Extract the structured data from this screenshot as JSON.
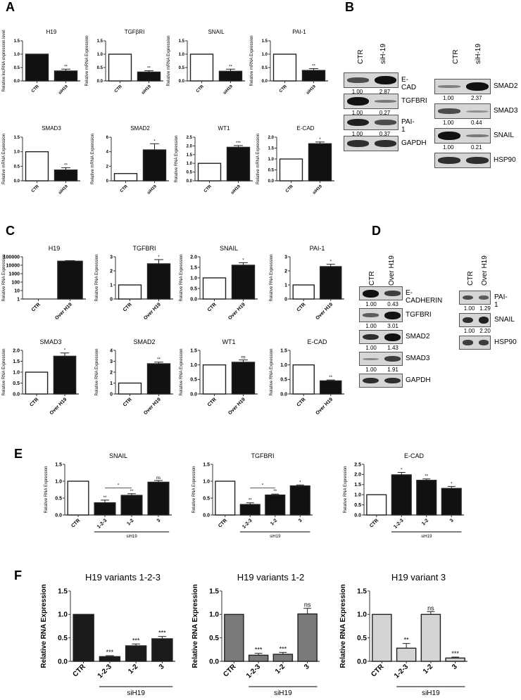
{
  "panels": {
    "A": "A",
    "B": "B",
    "C": "C",
    "D": "D",
    "E": "E",
    "F": "F"
  },
  "chart_data": [
    {
      "panel": "A",
      "type": "bar",
      "title": "H19",
      "ylabel": "Relative lncRNA expression level",
      "categories": [
        "CTR",
        "siH19"
      ],
      "values": [
        1.0,
        0.37
      ],
      "errors": [
        0,
        0.07
      ],
      "fills": [
        "#111111",
        "#111111"
      ],
      "sig": [
        "",
        "**"
      ],
      "ylim": [
        0,
        1.5
      ],
      "yticks": [
        "0.0",
        "0.5",
        "1.0",
        "1.5"
      ]
    },
    {
      "panel": "A",
      "type": "bar",
      "title": "TGFβRI",
      "ylabel": "Relative mRNA Expression",
      "categories": [
        "CTR",
        "siH19"
      ],
      "values": [
        1.0,
        0.33
      ],
      "errors": [
        0,
        0.05
      ],
      "fills": [
        "#ffffff",
        "#111111"
      ],
      "sig": [
        "",
        "**"
      ],
      "ylim": [
        0,
        1.5
      ],
      "yticks": [
        "0.0",
        "0.5",
        "1.0",
        "1.5"
      ]
    },
    {
      "panel": "A",
      "type": "bar",
      "title": "SNAIL",
      "ylabel": "Relative mRNA Expression",
      "categories": [
        "CTR",
        "siH19"
      ],
      "values": [
        1.0,
        0.36
      ],
      "errors": [
        0,
        0.08
      ],
      "fills": [
        "#ffffff",
        "#111111"
      ],
      "sig": [
        "",
        "**"
      ],
      "ylim": [
        0,
        1.5
      ],
      "yticks": [
        "0.0",
        "0.5",
        "1.0",
        "1.5"
      ]
    },
    {
      "panel": "A",
      "type": "bar",
      "title": "PAI-1",
      "ylabel": "Relative mRNA Expression",
      "categories": [
        "CTR",
        "siH19"
      ],
      "values": [
        1.0,
        0.39
      ],
      "errors": [
        0,
        0.07
      ],
      "fills": [
        "#ffffff",
        "#111111"
      ],
      "sig": [
        "",
        "**"
      ],
      "ylim": [
        0,
        1.5
      ],
      "yticks": [
        "0.0",
        "0.5",
        "1.0",
        "1.5"
      ]
    },
    {
      "panel": "A",
      "type": "bar",
      "title": "SMAD3",
      "ylabel": "Relative mRNA Expression",
      "categories": [
        "CTR",
        "siH19"
      ],
      "values": [
        1.0,
        0.37
      ],
      "errors": [
        0,
        0.08
      ],
      "fills": [
        "#ffffff",
        "#111111"
      ],
      "sig": [
        "",
        "**"
      ],
      "ylim": [
        0,
        1.5
      ],
      "yticks": [
        "0.0",
        "0.5",
        "1.0",
        "1.5"
      ]
    },
    {
      "panel": "A",
      "type": "bar",
      "title": "SMAD2",
      "ylabel": "Relative mRNA Expression",
      "categories": [
        "CTR",
        "siH19"
      ],
      "values": [
        1.0,
        4.25
      ],
      "errors": [
        0,
        0.85
      ],
      "fills": [
        "#ffffff",
        "#111111"
      ],
      "sig": [
        "",
        "*"
      ],
      "ylim": [
        0,
        6
      ],
      "yticks": [
        "0",
        "2",
        "4",
        "6"
      ]
    },
    {
      "panel": "A",
      "type": "bar",
      "title": "WT1",
      "ylabel": "Relative RNA Expression",
      "categories": [
        "CTR",
        "siH19"
      ],
      "values": [
        1.0,
        1.92
      ],
      "errors": [
        0,
        0.1
      ],
      "fills": [
        "#ffffff",
        "#111111"
      ],
      "sig": [
        "",
        "***"
      ],
      "ylim": [
        0,
        2.5
      ],
      "yticks": [
        "0.0",
        "0.5",
        "1.0",
        "1.5",
        "2.0",
        "2.5"
      ]
    },
    {
      "panel": "A",
      "type": "bar",
      "title": "E-CAD",
      "ylabel": "Relative mRNA Expression",
      "categories": [
        "CTR",
        "siH19"
      ],
      "values": [
        1.0,
        1.7
      ],
      "errors": [
        0,
        0.08
      ],
      "fills": [
        "#ffffff",
        "#111111"
      ],
      "sig": [
        "",
        "*"
      ],
      "ylim": [
        0,
        2.0
      ],
      "yticks": [
        "0.0",
        "0.5",
        "1.0",
        "1.5",
        "2.0"
      ]
    },
    {
      "panel": "C",
      "type": "bar",
      "title": "H19",
      "ylabel": "Relative RNA Expression",
      "categories": [
        "CTR",
        "Over H19"
      ],
      "values": [
        1,
        30000
      ],
      "errors": [
        0,
        5000
      ],
      "fills": [
        "#ffffff",
        "#111111"
      ],
      "sig": [
        "",
        ""
      ],
      "yscale": "log",
      "ylim": [
        1,
        100000
      ],
      "yticks": [
        "1",
        "10",
        "100",
        "1000",
        "10000",
        "100000"
      ]
    },
    {
      "panel": "C",
      "type": "bar",
      "title": "TGFBRI",
      "ylabel": "Relative RNA Expression",
      "categories": [
        "CTR",
        "Over H19"
      ],
      "values": [
        1.0,
        2.5
      ],
      "errors": [
        0,
        0.3
      ],
      "fills": [
        "#ffffff",
        "#111111"
      ],
      "sig": [
        "",
        "*"
      ],
      "ylim": [
        0,
        3
      ],
      "yticks": [
        "0",
        "1",
        "2",
        "3"
      ]
    },
    {
      "panel": "C",
      "type": "bar",
      "title": "SNAIL",
      "ylabel": "Relative RNA Expression",
      "categories": [
        "CTR",
        "Over H19"
      ],
      "values": [
        1.0,
        1.6
      ],
      "errors": [
        0,
        0.12
      ],
      "fills": [
        "#ffffff",
        "#111111"
      ],
      "sig": [
        "",
        "*"
      ],
      "ylim": [
        0,
        2.0
      ],
      "yticks": [
        "0.0",
        "0.5",
        "1.0",
        "1.5",
        "2.0"
      ]
    },
    {
      "panel": "C",
      "type": "bar",
      "title": "PAI-1",
      "ylabel": "Relative RNA Expression",
      "categories": [
        "CTR",
        "Over H19"
      ],
      "values": [
        1.0,
        2.3
      ],
      "errors": [
        0,
        0.17
      ],
      "fills": [
        "#ffffff",
        "#111111"
      ],
      "sig": [
        "",
        "*"
      ],
      "ylim": [
        0,
        3
      ],
      "yticks": [
        "0",
        "1",
        "2",
        "3"
      ]
    },
    {
      "panel": "C",
      "type": "bar",
      "title": "SMAD3",
      "ylabel": "Relative RNA Expression",
      "categories": [
        "CTR",
        "Over H19"
      ],
      "values": [
        1.0,
        1.73
      ],
      "errors": [
        0,
        0.15
      ],
      "fills": [
        "#ffffff",
        "#111111"
      ],
      "sig": [
        "",
        "*"
      ],
      "ylim": [
        0,
        2.0
      ],
      "yticks": [
        "0.0",
        "0.5",
        "1.0",
        "1.5",
        "2.0"
      ]
    },
    {
      "panel": "C",
      "type": "bar",
      "title": "SMAD2",
      "ylabel": "Relative RNA Expression",
      "categories": [
        "CTR",
        "Over H19"
      ],
      "values": [
        1.0,
        2.77
      ],
      "errors": [
        0,
        0.15
      ],
      "fills": [
        "#ffffff",
        "#111111"
      ],
      "sig": [
        "",
        "**"
      ],
      "ylim": [
        0,
        4
      ],
      "yticks": [
        "0",
        "1",
        "2",
        "3",
        "4"
      ]
    },
    {
      "panel": "C",
      "type": "bar",
      "title": "WT1",
      "ylabel": "Relative RNA Expression",
      "categories": [
        "CTR",
        "Over H19"
      ],
      "values": [
        1.0,
        1.09
      ],
      "errors": [
        0,
        0.08
      ],
      "fills": [
        "#ffffff",
        "#111111"
      ],
      "sig": [
        "",
        "ns"
      ],
      "ylim": [
        0,
        1.5
      ],
      "yticks": [
        "0.0",
        "0.5",
        "1.0",
        "1.5"
      ]
    },
    {
      "panel": "C",
      "type": "bar",
      "title": "E-CAD",
      "ylabel": "Relative RNA Expression",
      "categories": [
        "CTR",
        "Over H19"
      ],
      "values": [
        1.0,
        0.45
      ],
      "errors": [
        0,
        0.03
      ],
      "fills": [
        "#ffffff",
        "#111111"
      ],
      "sig": [
        "",
        "**"
      ],
      "ylim": [
        0,
        1.5
      ],
      "yticks": [
        "0.0",
        "0.5",
        "1.0",
        "1.5"
      ]
    },
    {
      "panel": "E",
      "type": "bar",
      "title": "SNAIL",
      "ylabel": "Relative RNA Expression",
      "categories": [
        "CTR",
        "1-2-3",
        "1-2",
        "3"
      ],
      "values": [
        1.0,
        0.36,
        0.58,
        0.97
      ],
      "errors": [
        0,
        0.08,
        0.05,
        0.05
      ],
      "fills": [
        "#ffffff",
        "#111111",
        "#111111",
        "#111111"
      ],
      "sig": [
        "",
        "**",
        "**",
        "ns"
      ],
      "bracket": {
        "from": 1,
        "to": 2,
        "label": "*"
      },
      "group_label": "siH19",
      "ylim": [
        0,
        1.5
      ],
      "yticks": [
        "0.0",
        "0.5",
        "1.0",
        "1.5"
      ]
    },
    {
      "panel": "E",
      "type": "bar",
      "title": "TGFBRI",
      "ylabel": "Relative RNA Expression",
      "categories": [
        "CTR",
        "1-2-3",
        "1-2",
        "3"
      ],
      "values": [
        1.0,
        0.31,
        0.59,
        0.86
      ],
      "errors": [
        0,
        0.05,
        0.03,
        0.03
      ],
      "fills": [
        "#ffffff",
        "#111111",
        "#111111",
        "#111111"
      ],
      "sig": [
        "",
        "**",
        "**",
        "*"
      ],
      "bracket": {
        "from": 1,
        "to": 2,
        "label": "*"
      },
      "group_label": "siH19",
      "ylim": [
        0,
        1.5
      ],
      "yticks": [
        "0.0",
        "0.5",
        "1.0",
        "1.5"
      ]
    },
    {
      "panel": "E",
      "type": "bar",
      "title": "E-CAD",
      "ylabel": "Relative RNA Expression",
      "categories": [
        "CTR",
        "1-2-3",
        "1-2",
        "3"
      ],
      "values": [
        1.0,
        1.98,
        1.71,
        1.31
      ],
      "errors": [
        0,
        0.12,
        0.07,
        0.1
      ],
      "fills": [
        "#ffffff",
        "#111111",
        "#111111",
        "#111111"
      ],
      "sig": [
        "",
        "*",
        "**",
        "*"
      ],
      "group_label": "siH19",
      "ylim": [
        0,
        2.5
      ],
      "yticks": [
        "0.0",
        "0.5",
        "1.0",
        "1.5",
        "2.0",
        "2.5"
      ]
    },
    {
      "panel": "F",
      "type": "bar",
      "title": "H19 variants 1-2-3",
      "ylabel": "Relative RNA Expression",
      "categories": [
        "CTR",
        "1-2-3",
        "1-2",
        "3"
      ],
      "values": [
        1.0,
        0.1,
        0.33,
        0.48
      ],
      "errors": [
        0,
        0.02,
        0.04,
        0.05
      ],
      "fills": [
        "#1a1a1a",
        "#1a1a1a",
        "#1a1a1a",
        "#1a1a1a"
      ],
      "sig": [
        "",
        "***",
        "***",
        "***"
      ],
      "group_label": "siH19",
      "ylim": [
        0,
        1.5
      ],
      "yticks": [
        "0.0",
        "0.5",
        "1.0",
        "1.5"
      ]
    },
    {
      "panel": "F",
      "type": "bar",
      "title": "H19 variants 1-2",
      "ylabel": "Relative RNA Expression",
      "categories": [
        "CTR",
        "1-2-3",
        "1-2",
        "3"
      ],
      "values": [
        1.0,
        0.13,
        0.15,
        1.01
      ],
      "errors": [
        0,
        0.04,
        0.04,
        0.12
      ],
      "fills": [
        "#7a7a7a",
        "#7a7a7a",
        "#7a7a7a",
        "#7a7a7a"
      ],
      "sig": [
        "",
        "***",
        "***",
        "ns"
      ],
      "group_label": "siH19",
      "ylim": [
        0,
        1.5
      ],
      "yticks": [
        "0.0",
        "0.5",
        "1.0",
        "1.5"
      ]
    },
    {
      "panel": "F",
      "type": "bar",
      "title": "H19 variant 3",
      "ylabel": "Relative RNA Expression",
      "categories": [
        "CTR",
        "1-2-3",
        "1-2",
        "3"
      ],
      "values": [
        1.0,
        0.28,
        1.0,
        0.07
      ],
      "errors": [
        0,
        0.1,
        0.06,
        0.02
      ],
      "fills": [
        "#d4d4d4",
        "#d4d4d4",
        "#d4d4d4",
        "#d4d4d4"
      ],
      "sig": [
        "",
        "**",
        "ns",
        "***"
      ],
      "group_label": "siH19",
      "ylim": [
        0,
        1.5
      ],
      "yticks": [
        "0.0",
        "0.5",
        "1.0",
        "1.5"
      ]
    }
  ],
  "blots": {
    "B_left": {
      "lanes": [
        "CTR",
        "siH-19"
      ],
      "rows": [
        {
          "label": "E-CAD",
          "quant": [
            "1.00",
            "2.87"
          ],
          "intensity": [
            0.6,
            1.0
          ]
        },
        {
          "label": "TGFBRI",
          "quant": [
            "1.00",
            "0.27"
          ],
          "intensity": [
            1.0,
            0.3
          ]
        },
        {
          "label": "PAI-1",
          "quant": [
            "1.00",
            "0.37"
          ],
          "intensity": [
            0.9,
            0.6
          ]
        },
        {
          "label": "GAPDH",
          "quant": null,
          "intensity": [
            0.8,
            0.8
          ]
        }
      ]
    },
    "B_right": {
      "lanes": [
        "CTR",
        "siH-19"
      ],
      "rows": [
        {
          "label": "SMAD2",
          "quant": [
            "1.00",
            "2.37"
          ],
          "intensity": [
            0.25,
            1.0
          ]
        },
        {
          "label": "SMAD3",
          "quant": [
            "1.00",
            "0.44"
          ],
          "intensity": [
            0.6,
            0.15
          ]
        },
        {
          "label": "SNAIL",
          "quant": [
            "1.00",
            "0.21"
          ],
          "intensity": [
            1.0,
            0.3
          ]
        },
        {
          "label": "HSP90",
          "quant": null,
          "intensity": [
            0.8,
            0.8
          ]
        }
      ]
    },
    "D_left": {
      "lanes": [
        "CTR",
        "Over H19"
      ],
      "rows": [
        {
          "label": "E-CADHERIN",
          "quant": [
            "1.00",
            "0.43"
          ],
          "intensity": [
            1.0,
            0.7
          ]
        },
        {
          "label": "TGFBRI",
          "quant": [
            "1.00",
            "3.01"
          ],
          "intensity": [
            0.5,
            1.0
          ]
        },
        {
          "label": "SMAD2",
          "quant": [
            "1.00",
            "1.43"
          ],
          "intensity": [
            0.8,
            1.0
          ]
        },
        {
          "label": "SMAD3",
          "quant": [
            "1.00",
            "1.91"
          ],
          "intensity": [
            0.2,
            0.7
          ]
        },
        {
          "label": "GAPDH",
          "quant": null,
          "intensity": [
            0.8,
            0.8
          ]
        }
      ]
    },
    "D_right": {
      "lanes": [
        "CTR",
        "Over H19"
      ],
      "rows": [
        {
          "label": "PAI-1",
          "quant": [
            "1.00",
            "1.29"
          ],
          "intensity": [
            0.6,
            0.5
          ]
        },
        {
          "label": "SNAIL",
          "quant": [
            "1.00",
            "2.20"
          ],
          "intensity": [
            0.8,
            0.9
          ]
        },
        {
          "label": "HSP90",
          "quant": null,
          "intensity": [
            0.7,
            0.7
          ]
        }
      ]
    }
  }
}
